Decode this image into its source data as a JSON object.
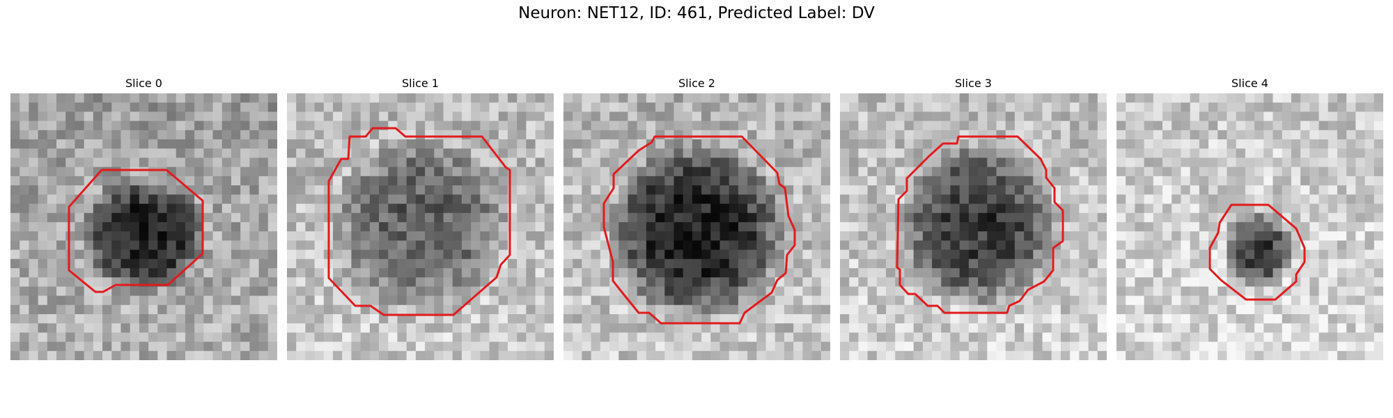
{
  "figure": {
    "title": "Neuron: NET12, ID: 461, Predicted Label: DV"
  },
  "panels": [
    {
      "title": "Slice 0"
    },
    {
      "title": "Slice 1"
    },
    {
      "title": "Slice 2"
    },
    {
      "title": "Slice 3"
    },
    {
      "title": "Slice 4"
    }
  ],
  "colors": {
    "contour": "#e31a1c",
    "background": "#ffffff"
  }
}
